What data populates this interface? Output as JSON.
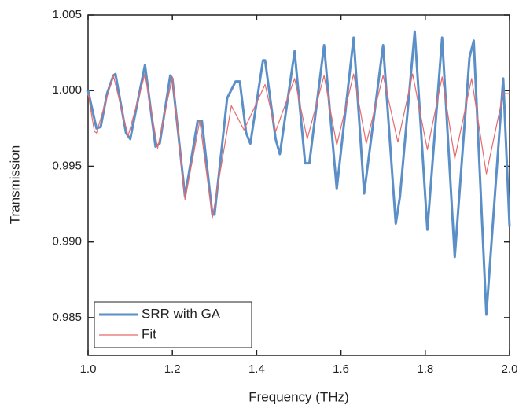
{
  "chart_data": {
    "type": "line",
    "x_label": "Frequency (THz)",
    "y_label": "Transmission",
    "xlim": [
      1.0,
      2.0
    ],
    "ylim": [
      0.9825,
      1.005
    ],
    "xticks": [
      {
        "value": 1.0,
        "label": "1.0"
      },
      {
        "value": 1.2,
        "label": "1.2"
      },
      {
        "value": 1.4,
        "label": "1.4"
      },
      {
        "value": 1.6,
        "label": "1.6"
      },
      {
        "value": 1.8,
        "label": "1.8"
      },
      {
        "value": 2.0,
        "label": "2.0"
      }
    ],
    "yticks": [
      {
        "value": 0.985,
        "label": "0.985"
      },
      {
        "value": 0.99,
        "label": "0.990"
      },
      {
        "value": 0.995,
        "label": "0.995"
      },
      {
        "value": 1.0,
        "label": "1.000"
      },
      {
        "value": 1.005,
        "label": "1.005"
      }
    ],
    "legend": "lower left",
    "series": [
      {
        "name": "SRR with GA",
        "color": "#5b8fc7",
        "width": 3,
        "x": [
          1.0,
          1.02,
          1.03,
          1.045,
          1.06,
          1.065,
          1.09,
          1.1,
          1.135,
          1.16,
          1.17,
          1.195,
          1.2,
          1.23,
          1.26,
          1.27,
          1.295,
          1.3,
          1.33,
          1.35,
          1.36,
          1.375,
          1.385,
          1.415,
          1.42,
          1.445,
          1.455,
          1.49,
          1.515,
          1.525,
          1.56,
          1.59,
          1.63,
          1.655,
          1.7,
          1.73,
          1.74,
          1.775,
          1.805,
          1.84,
          1.87,
          1.905,
          1.915,
          1.945,
          1.985,
          2.0
        ],
        "values": [
          1.0,
          0.9975,
          0.9976,
          0.9998,
          1.001,
          1.0011,
          0.9972,
          0.9968,
          1.0017,
          0.9963,
          0.9965,
          1.001,
          1.0008,
          0.993,
          0.998,
          0.998,
          0.9918,
          0.9918,
          0.9995,
          1.0006,
          1.0006,
          0.9972,
          0.9965,
          1.002,
          1.002,
          0.9968,
          0.9958,
          1.0026,
          0.9952,
          0.9952,
          1.003,
          0.9935,
          1.0035,
          0.9932,
          1.003,
          0.9912,
          0.993,
          1.0039,
          0.9908,
          1.0035,
          0.989,
          1.0022,
          1.0033,
          0.9852,
          1.0008,
          0.991
        ]
      },
      {
        "name": "Fit",
        "color": "#e8696b",
        "width": 1.2,
        "x": [
          1.0,
          1.015,
          1.02,
          1.06,
          1.095,
          1.135,
          1.165,
          1.2,
          1.23,
          1.265,
          1.295,
          1.34,
          1.37,
          1.42,
          1.445,
          1.49,
          1.52,
          1.56,
          1.59,
          1.63,
          1.66,
          1.7,
          1.735,
          1.77,
          1.805,
          1.84,
          1.87,
          1.91,
          1.945,
          1.985,
          2.0
        ],
        "values": [
          0.9998,
          0.9973,
          0.9972,
          1.001,
          0.997,
          1.0011,
          0.9962,
          1.0009,
          0.9928,
          0.998,
          0.9916,
          0.999,
          0.9974,
          1.0004,
          0.9973,
          1.0008,
          0.9968,
          1.001,
          0.9964,
          1.0011,
          0.9965,
          1.001,
          0.9966,
          1.0011,
          0.9961,
          1.0009,
          0.9955,
          1.0008,
          0.9945,
          0.9998,
          0.9998
        ]
      }
    ]
  }
}
